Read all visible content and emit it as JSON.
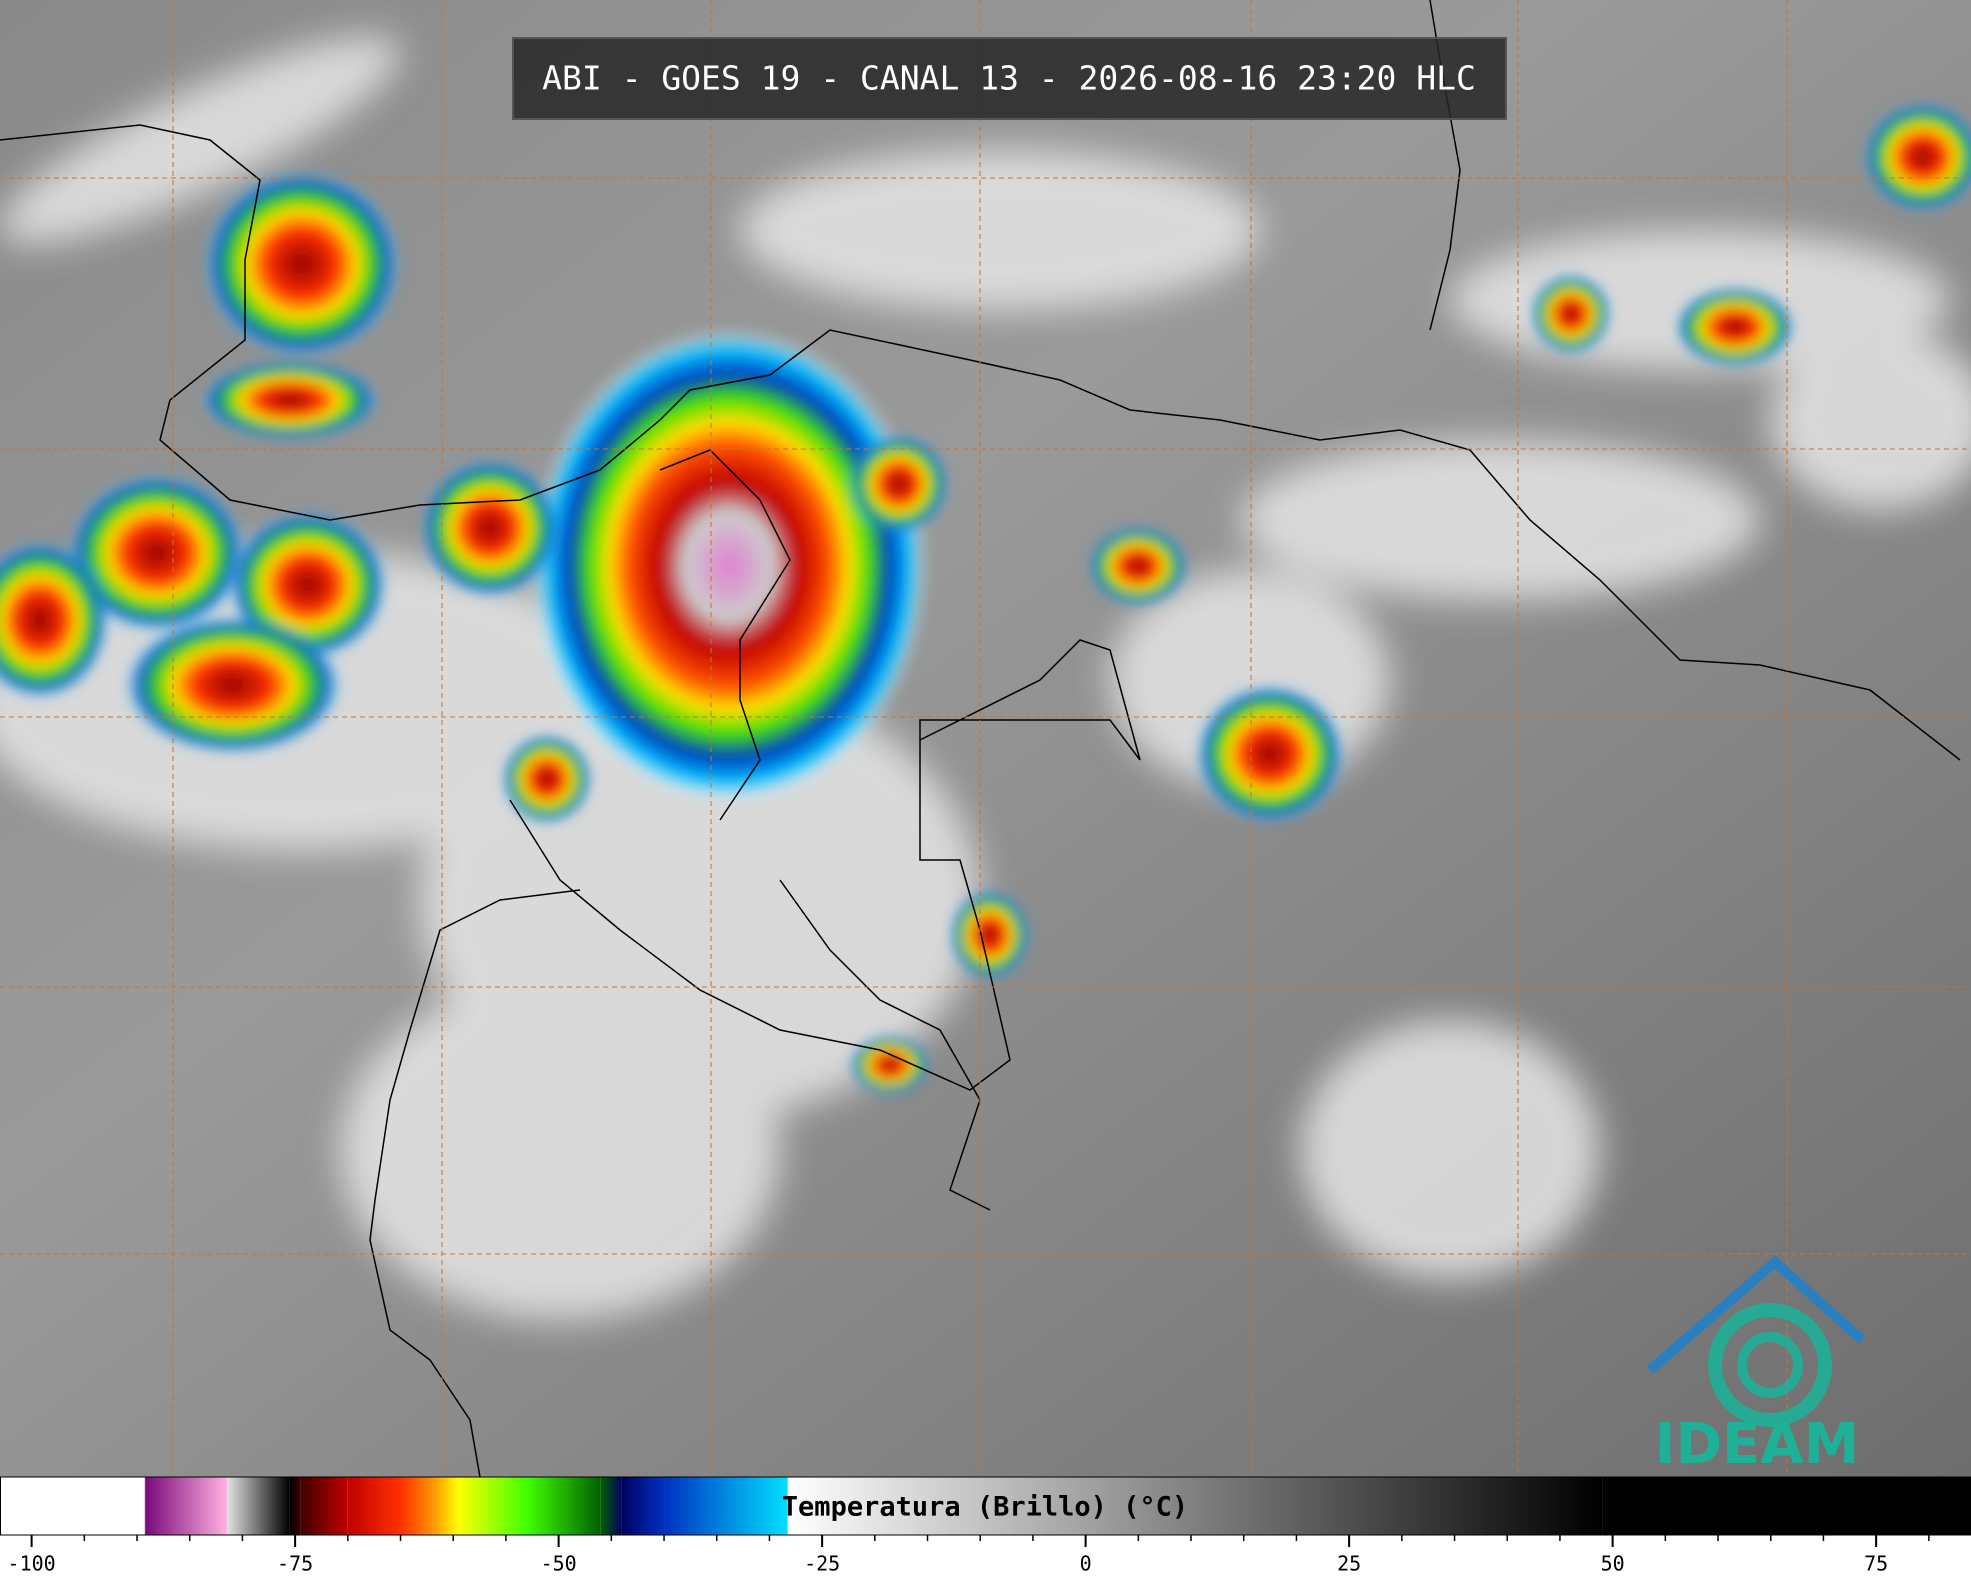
{
  "title": "ABI - GOES 19 - CANAL 13 - 2026-08-16 23:20 HLC",
  "colorbar": {
    "label": "Temperatura (Brillo) (°C)",
    "xlim": [
      -103,
      84
    ],
    "xticks": [
      -100,
      -75,
      -50,
      -25,
      0,
      25,
      50,
      75
    ],
    "stops": [
      {
        "value": -103,
        "color": "#ffffff"
      },
      {
        "value": -89.3,
        "color": "#ffffff"
      },
      {
        "value": -89.2,
        "color": "#7a0a7a"
      },
      {
        "value": -81.5,
        "color": "#ffb0e0"
      },
      {
        "value": -81.4,
        "color": "#e0e0e0"
      },
      {
        "value": -75.5,
        "color": "#000000"
      },
      {
        "value": -74.5,
        "color": "#400000"
      },
      {
        "value": -70,
        "color": "#c00000"
      },
      {
        "value": -65,
        "color": "#ff3000"
      },
      {
        "value": -62,
        "color": "#ff9000"
      },
      {
        "value": -59.5,
        "color": "#ffff00"
      },
      {
        "value": -53,
        "color": "#40ff00"
      },
      {
        "value": -46,
        "color": "#006000"
      },
      {
        "value": -44,
        "color": "#000060"
      },
      {
        "value": -40,
        "color": "#0030c0"
      },
      {
        "value": -28.3,
        "color": "#00e0ff"
      },
      {
        "value": -28.2,
        "color": "#ffffff"
      },
      {
        "value": 49,
        "color": "#000000"
      },
      {
        "value": 84,
        "color": "#000000"
      }
    ]
  },
  "logo": "IDEAM"
}
